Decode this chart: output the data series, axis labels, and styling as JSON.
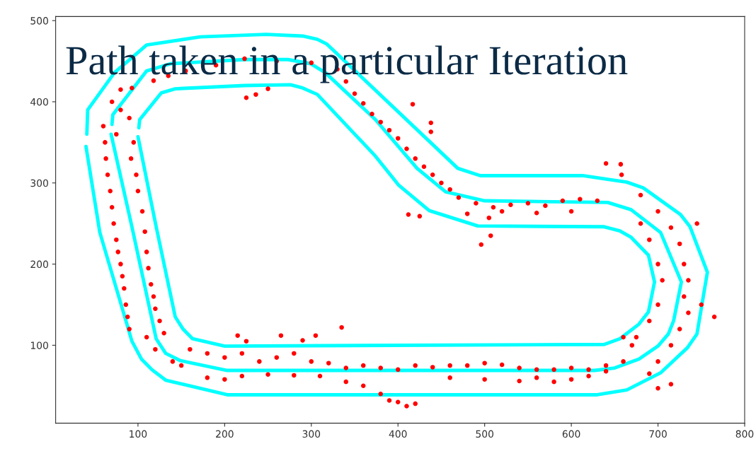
{
  "chart_data": {
    "type": "line",
    "title": "Path taken in a particular Iteration",
    "xlim": [
      5,
      800
    ],
    "ylim": [
      4,
      505
    ],
    "xticks": [
      100,
      200,
      300,
      400,
      500,
      600,
      700,
      800
    ],
    "yticks": [
      100,
      200,
      300,
      400,
      500
    ],
    "grid": false,
    "marker": "none",
    "line_style": "solid",
    "series": [
      {
        "color": "#00ffff",
        "x": [
          41,
          42,
          73,
          110,
          172,
          248,
          290,
          307,
          318,
          469,
          495,
          613,
          664,
          683,
          726,
          737,
          757,
          745,
          734,
          703,
          664,
          630,
          203,
          132,
          116,
          104,
          93,
          56,
          40
        ],
        "values": [
          360,
          390,
          436,
          470,
          480,
          483,
          481,
          477,
          471,
          318,
          309,
          309,
          301,
          294,
          261,
          246,
          190,
          114,
          97,
          66,
          45,
          39,
          39,
          57,
          70,
          83,
          105,
          239,
          345
        ]
      },
      {
        "color": "#00ffff",
        "x": [
          70,
          71,
          110,
          138,
          223,
          273,
          299,
          316,
          374,
          422,
          455,
          500,
          642,
          669,
          703,
          727,
          718,
          712,
          700,
          678,
          650,
          627,
          203,
          149,
          132,
          121,
          93,
          69
        ],
        "values": [
          372,
          384,
          438,
          447,
          452,
          452,
          447,
          436,
          378,
          318,
          289,
          278,
          276,
          267,
          239,
          178,
          130,
          114,
          99,
          83,
          72,
          69,
          69,
          81,
          90,
          108,
          246,
          360
        ]
      },
      {
        "color": "#00ffff",
        "x": [
          101,
          102,
          127,
          143,
          223,
          276,
          290,
          307,
          374,
          401,
          436,
          492,
          638,
          656,
          669,
          689,
          696,
          689,
          678,
          656,
          638,
          200,
          163,
          152,
          143,
          121,
          100
        ],
        "values": [
          368,
          378,
          411,
          416,
          420,
          421,
          417,
          409,
          333,
          297,
          266,
          247,
          246,
          241,
          233,
          211,
          178,
          141,
          126,
          108,
          101,
          99,
          108,
          120,
          135,
          246,
          357
        ]
      },
      {
        "type": "scatter",
        "color": "#ff0000",
        "marker": "circle",
        "x": [
          60,
          62,
          63,
          65,
          68,
          70,
          72,
          75,
          77,
          80,
          82,
          84,
          86,
          88,
          90,
          90,
          95,
          92,
          98,
          100,
          105,
          108,
          110,
          112,
          115,
          118,
          120,
          125,
          130,
          80,
          75,
          70,
          80,
          93,
          118,
          135,
          155,
          223,
          225,
          236,
          250,
          190,
          260,
          300,
          330,
          340,
          350,
          360,
          370,
          380,
          390,
          400,
          410,
          420,
          430,
          440,
          450,
          460,
          417,
          438,
          438,
          470,
          490,
          510,
          530,
          550,
          570,
          590,
          610,
          630,
          480,
          520,
          560,
          600,
          412,
          425,
          505,
          496,
          507,
          640,
          657,
          658,
          680,
          700,
          715,
          725,
          730,
          735,
          730,
          735,
          725,
          715,
          700,
          690,
          680,
          690,
          700,
          705,
          700,
          690,
          675,
          745,
          765,
          750,
          715,
          700,
          160,
          180,
          200,
          220,
          240,
          260,
          280,
          300,
          320,
          340,
          360,
          380,
          400,
          420,
          440,
          460,
          480,
          500,
          520,
          540,
          560,
          580,
          600,
          620,
          640,
          660,
          670,
          660,
          180,
          200,
          220,
          250,
          280,
          310,
          340,
          360,
          380,
          390,
          400,
          410,
          420,
          460,
          500,
          540,
          560,
          580,
          600,
          620,
          640,
          215,
          265,
          290,
          305,
          335,
          225,
          110,
          120,
          140,
          150
        ],
        "values": [
          370,
          350,
          330,
          310,
          290,
          270,
          250,
          230,
          215,
          200,
          185,
          170,
          150,
          135,
          120,
          380,
          350,
          330,
          310,
          290,
          265,
          240,
          215,
          195,
          175,
          160,
          145,
          130,
          115,
          390,
          360,
          400,
          415,
          417,
          426,
          432,
          438,
          453,
          405,
          409,
          416,
          445,
          450,
          448,
          440,
          425,
          410,
          398,
          385,
          375,
          365,
          355,
          342,
          330,
          320,
          310,
          300,
          292,
          397,
          374,
          363,
          282,
          275,
          270,
          273,
          275,
          272,
          278,
          280,
          278,
          262,
          265,
          263,
          265,
          261,
          259,
          257,
          224,
          235,
          324,
          323,
          310,
          285,
          265,
          245,
          225,
          200,
          180,
          160,
          140,
          120,
          100,
          80,
          65,
          250,
          230,
          200,
          180,
          150,
          130,
          110,
          250,
          135,
          150,
          52,
          47,
          95,
          90,
          85,
          90,
          80,
          85,
          90,
          80,
          78,
          72,
          75,
          72,
          70,
          75,
          73,
          75,
          75,
          78,
          76,
          72,
          70,
          70,
          72,
          70,
          75,
          80,
          100,
          110,
          60,
          58,
          62,
          64,
          63,
          62,
          55,
          50,
          40,
          32,
          30,
          25,
          28,
          60,
          58,
          56,
          60,
          55,
          58,
          62,
          68,
          112,
          112,
          106,
          112,
          122,
          105,
          110,
          95,
          80,
          75
        ]
      }
    ]
  }
}
